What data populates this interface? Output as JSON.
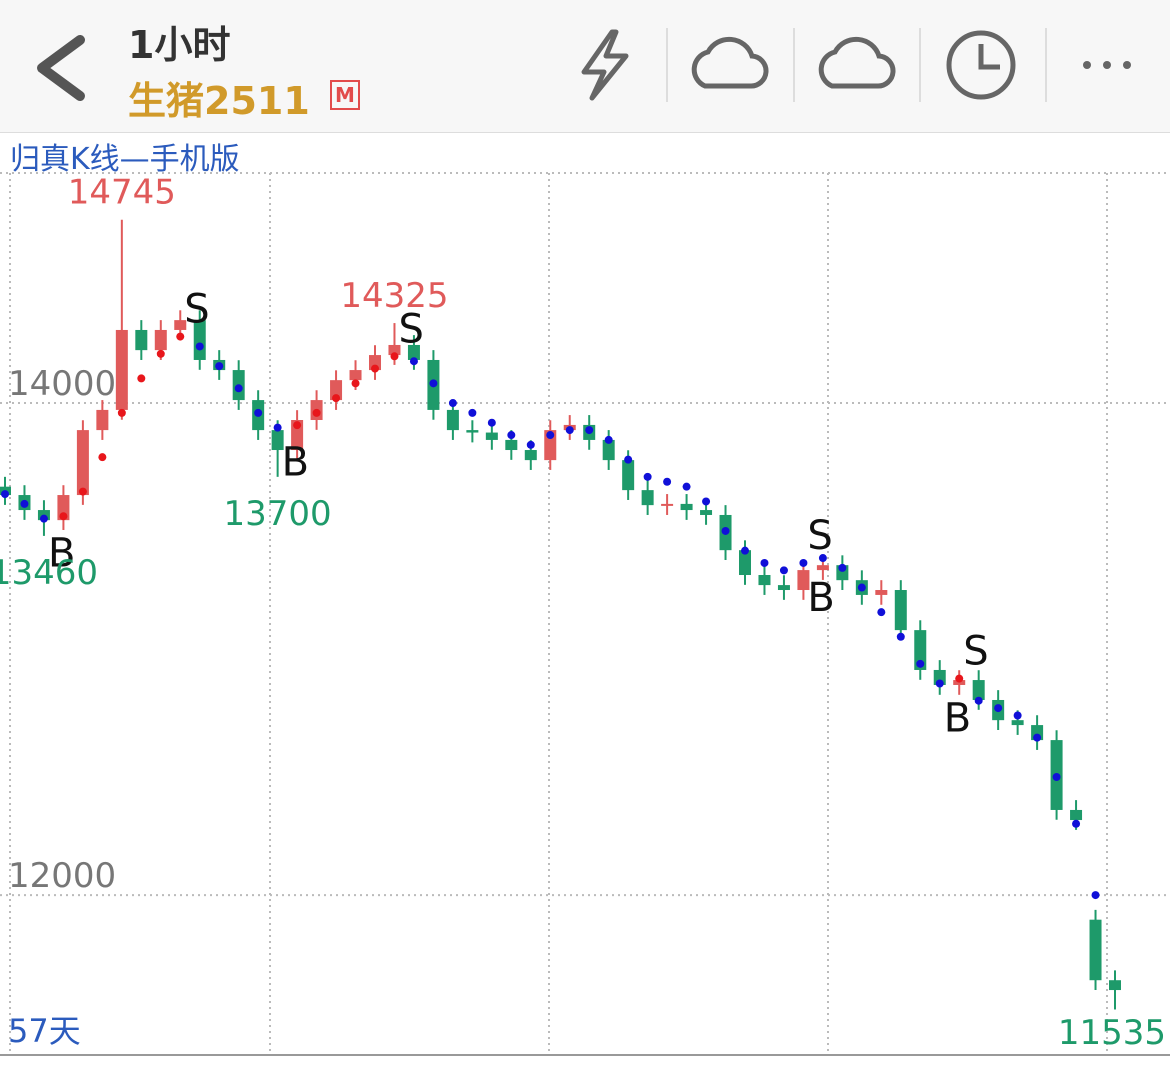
{
  "header": {
    "period": "1小时",
    "symbol": "生猪2511",
    "badge": "M"
  },
  "watermark": "归真K线—手机版",
  "footer_left": "57天",
  "chart_data": {
    "type": "candlestick",
    "up_color": "#e05a5a",
    "down_color": "#1e9a6a",
    "open": [
      13660,
      13626,
      13565,
      13524,
      13626,
      13890,
      13972,
      14297,
      14215,
      14297,
      14337,
      14175,
      14134,
      14012,
      13890,
      13809,
      13931,
      14012,
      14093,
      14134,
      14195,
      14236,
      14175,
      13972,
      13890,
      13880,
      13850,
      13809,
      13768,
      13890,
      13911,
      13850,
      13768,
      13646,
      13585,
      13590,
      13565,
      13545,
      13402,
      13301,
      13260,
      13240,
      13321,
      13341,
      13280,
      13220,
      13240,
      13077,
      12915,
      12854,
      12874,
      12793,
      12711,
      12691,
      12630,
      12346,
      11900,
      11654
    ],
    "high": [
      13700,
      13666,
      13605,
      13666,
      13930,
      14012,
      14745,
      14337,
      14337,
      14377,
      14377,
      14215,
      14174,
      14052,
      13930,
      13971,
      14052,
      14133,
      14174,
      14235,
      14325,
      14276,
      14215,
      14012,
      13930,
      13920,
      13890,
      13849,
      13930,
      13951,
      13951,
      13890,
      13808,
      13686,
      13630,
      13630,
      13605,
      13585,
      13442,
      13341,
      13300,
      13361,
      13381,
      13381,
      13320,
      13280,
      13280,
      13117,
      12955,
      12914,
      12914,
      12833,
      12751,
      12731,
      12670,
      12386,
      11940,
      11694
    ],
    "low": [
      13586,
      13525,
      13460,
      13484,
      13586,
      13850,
      13932,
      14175,
      14175,
      14257,
      14135,
      14094,
      13972,
      13850,
      13700,
      13769,
      13891,
      13972,
      14053,
      14094,
      14155,
      14135,
      13932,
      13850,
      13840,
      13810,
      13769,
      13728,
      13728,
      13850,
      13810,
      13728,
      13606,
      13545,
      13545,
      13525,
      13505,
      13362,
      13261,
      13220,
      13200,
      13200,
      13281,
      13240,
      13180,
      13180,
      13037,
      12875,
      12814,
      12814,
      12753,
      12671,
      12651,
      12590,
      12306,
      12265,
      11614,
      11535
    ],
    "close": [
      13626,
      13565,
      13524,
      13626,
      13890,
      13972,
      14297,
      14215,
      14297,
      14337,
      14175,
      14134,
      14012,
      13890,
      13809,
      13931,
      14012,
      14093,
      14134,
      14195,
      14236,
      14175,
      13972,
      13890,
      13880,
      13850,
      13809,
      13768,
      13890,
      13911,
      13850,
      13768,
      13646,
      13585,
      13590,
      13565,
      13545,
      13402,
      13301,
      13260,
      13240,
      13321,
      13341,
      13280,
      13220,
      13240,
      13077,
      12915,
      12854,
      12874,
      12793,
      12711,
      12691,
      12630,
      12346,
      12305,
      11654,
      11614
    ],
    "trend_up": {
      "color": "#e8161b",
      "values": [
        null,
        null,
        null,
        13540,
        13640,
        13780,
        13960,
        14100,
        14200,
        14270,
        null,
        null,
        null,
        null,
        null,
        13910,
        13960,
        14020,
        14080,
        14140,
        14190,
        null,
        null,
        null,
        null,
        null,
        null,
        null,
        null,
        null,
        null,
        null,
        null,
        null,
        null,
        null,
        null,
        null,
        null,
        null,
        null,
        null,
        null,
        null,
        null,
        null,
        null,
        null,
        null,
        12880,
        null,
        null,
        null,
        null,
        null,
        null,
        null,
        null
      ]
    },
    "trend_down": {
      "color": "#1010d8",
      "values": [
        13630,
        13590,
        13530,
        null,
        null,
        null,
        null,
        null,
        null,
        null,
        14230,
        14150,
        14060,
        13960,
        13900,
        null,
        null,
        null,
        null,
        null,
        null,
        14170,
        14080,
        14000,
        13960,
        13920,
        13870,
        13830,
        13870,
        13890,
        13890,
        13850,
        13770,
        13700,
        13680,
        13660,
        13600,
        13480,
        13400,
        13350,
        13320,
        13350,
        13370,
        13330,
        13250,
        13150,
        13050,
        12940,
        12860,
        null,
        12790,
        12760,
        12730,
        12640,
        12480,
        12290,
        12000,
        null
      ]
    },
    "signals": [
      {
        "text": "B",
        "index": 2
      },
      {
        "text": "S",
        "index": 9
      },
      {
        "text": "B",
        "index": 14
      },
      {
        "text": "S",
        "index": 20
      },
      {
        "text": "S",
        "index": 41
      },
      {
        "text": "B",
        "index": 41
      },
      {
        "text": "B",
        "index": 48
      },
      {
        "text": "S",
        "index": 49
      }
    ],
    "price_labels": [
      {
        "index": 6,
        "value": 14745,
        "color": "#e05a5a"
      },
      {
        "index": 20,
        "value": 14325,
        "color": "#e05a5a"
      },
      {
        "index": 14,
        "value": 13700,
        "color": "#1e9a6a"
      },
      {
        "index": 2,
        "value": 13460,
        "color": "#1e9a6a"
      },
      {
        "index": 57,
        "value": 11535,
        "color": "#1e9a6a"
      }
    ],
    "ylim": [
      11350,
      14935
    ],
    "yticks": [
      12000,
      14000
    ],
    "grid": true
  }
}
